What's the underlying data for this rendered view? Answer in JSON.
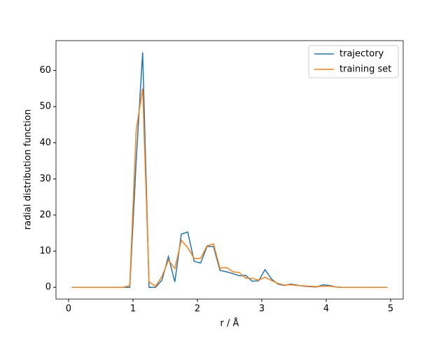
{
  "chart_data": {
    "type": "line",
    "x_label": "r / Å",
    "y_label": "radial distribution function",
    "x": [
      0.05,
      0.15,
      0.25,
      0.35,
      0.45,
      0.55,
      0.65,
      0.75,
      0.85,
      0.95,
      1.05,
      1.15,
      1.25,
      1.35,
      1.45,
      1.55,
      1.65,
      1.75,
      1.85,
      1.95,
      2.05,
      2.15,
      2.25,
      2.35,
      2.45,
      2.55,
      2.65,
      2.75,
      2.85,
      2.95,
      3.05,
      3.15,
      3.25,
      3.35,
      3.45,
      3.55,
      3.65,
      3.75,
      3.85,
      3.95,
      4.05,
      4.15,
      4.25,
      4.35,
      4.45,
      4.55,
      4.65,
      4.75,
      4.85,
      4.95
    ],
    "series": [
      {
        "name": "trajectory",
        "color": "#1f77b4",
        "values": [
          0,
          0,
          0,
          0,
          0,
          0,
          0,
          0,
          0,
          0,
          35,
          65,
          0,
          0,
          2,
          8.5,
          1.5,
          14.7,
          15.3,
          7.2,
          6.7,
          11.3,
          11.3,
          4.7,
          4.3,
          3.8,
          3.2,
          3.3,
          1.7,
          1.8,
          4.9,
          2.3,
          0.9,
          0.5,
          0.9,
          0.6,
          0.3,
          0.2,
          0.1,
          0.7,
          0.5,
          0.1,
          0,
          0,
          0,
          0,
          0,
          0,
          0,
          0
        ]
      },
      {
        "name": "training set",
        "color": "#ff7f0e",
        "values": [
          0,
          0,
          0,
          0,
          0,
          0,
          0,
          0,
          0,
          0.5,
          43.5,
          55,
          1.5,
          0.3,
          3,
          7.5,
          5.2,
          13,
          11,
          8,
          8,
          11.5,
          12,
          5.3,
          5.5,
          4.3,
          4.1,
          2.5,
          2.5,
          2,
          2.8,
          1.9,
          1.1,
          0.6,
          0.7,
          0.5,
          0.4,
          0.3,
          0.2,
          0.3,
          0.3,
          0.1,
          0,
          0,
          0,
          0,
          0,
          0,
          0,
          0
        ]
      }
    ],
    "xlim": [
      -0.195,
      5.195
    ],
    "ylim": [
      -3.25,
      68.25
    ],
    "xticks": [
      0,
      1,
      2,
      3,
      4,
      5
    ],
    "yticks": [
      0,
      10,
      20,
      30,
      40,
      50,
      60
    ],
    "legend": "upper right"
  }
}
